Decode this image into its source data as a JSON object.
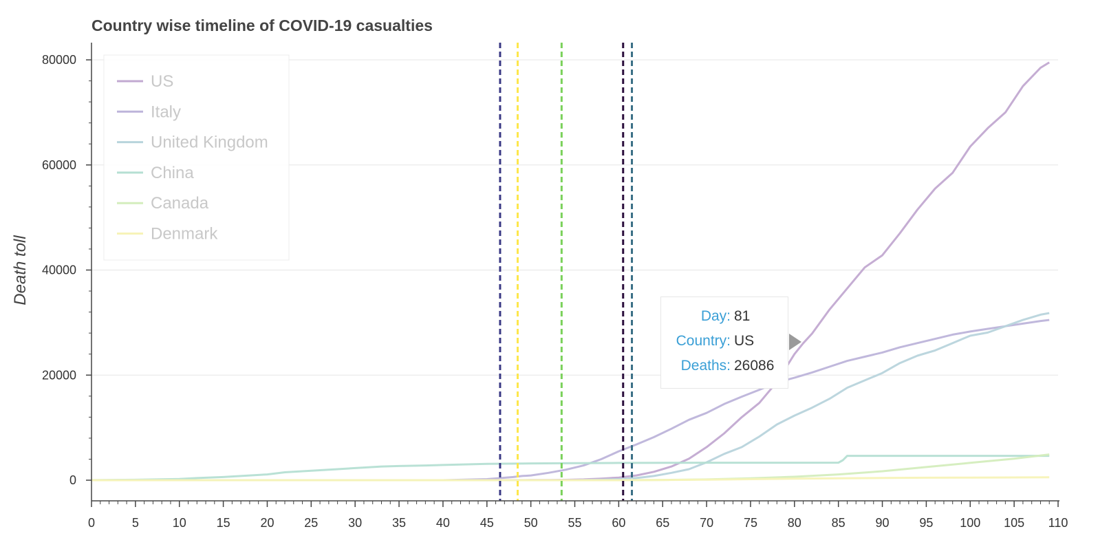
{
  "chart_data": {
    "type": "line",
    "title": "Country wise timeline of COVID-19 casualties",
    "xlabel": "",
    "ylabel": "Death toll",
    "xlim": [
      0,
      110
    ],
    "ylim": [
      0,
      80000
    ],
    "x_ticks": [
      0,
      5,
      10,
      15,
      20,
      25,
      30,
      35,
      40,
      45,
      50,
      55,
      60,
      65,
      70,
      75,
      80,
      85,
      90,
      95,
      100,
      105,
      110
    ],
    "y_ticks": [
      0,
      20000,
      40000,
      60000,
      80000
    ],
    "grid": "horizontal",
    "legend_position": "top-left",
    "series": [
      {
        "name": "US",
        "color": "#c2a9d1",
        "points": [
          [
            0,
            0
          ],
          [
            40,
            0
          ],
          [
            45,
            5
          ],
          [
            48,
            10
          ],
          [
            50,
            20
          ],
          [
            52,
            40
          ],
          [
            54,
            70
          ],
          [
            56,
            150
          ],
          [
            58,
            300
          ],
          [
            60,
            500
          ],
          [
            62,
            900
          ],
          [
            64,
            1600
          ],
          [
            66,
            2600
          ],
          [
            68,
            4100
          ],
          [
            70,
            6300
          ],
          [
            72,
            8900
          ],
          [
            74,
            12000
          ],
          [
            76,
            14700
          ],
          [
            78,
            18700
          ],
          [
            80,
            24000
          ],
          [
            81,
            26086
          ],
          [
            82,
            27900
          ],
          [
            84,
            32500
          ],
          [
            86,
            36500
          ],
          [
            88,
            40500
          ],
          [
            90,
            42800
          ],
          [
            92,
            47000
          ],
          [
            94,
            51500
          ],
          [
            96,
            55500
          ],
          [
            98,
            58500
          ],
          [
            100,
            63500
          ],
          [
            102,
            67000
          ],
          [
            104,
            70000
          ],
          [
            106,
            75000
          ],
          [
            108,
            78500
          ],
          [
            109,
            79500
          ]
        ]
      },
      {
        "name": "Italy",
        "color": "#bdb4da",
        "points": [
          [
            0,
            0
          ],
          [
            40,
            0
          ],
          [
            45,
            200
          ],
          [
            48,
            600
          ],
          [
            49,
            800
          ],
          [
            50,
            900
          ],
          [
            52,
            1400
          ],
          [
            54,
            2000
          ],
          [
            56,
            2800
          ],
          [
            58,
            4000
          ],
          [
            60,
            5500
          ],
          [
            62,
            6800
          ],
          [
            64,
            8200
          ],
          [
            66,
            9800
          ],
          [
            68,
            11500
          ],
          [
            70,
            12800
          ],
          [
            72,
            14500
          ],
          [
            74,
            15900
          ],
          [
            76,
            17200
          ],
          [
            78,
            18600
          ],
          [
            80,
            19500
          ],
          [
            82,
            20500
          ],
          [
            84,
            21600
          ],
          [
            86,
            22700
          ],
          [
            88,
            23500
          ],
          [
            90,
            24300
          ],
          [
            92,
            25300
          ],
          [
            94,
            26100
          ],
          [
            96,
            26900
          ],
          [
            98,
            27700
          ],
          [
            100,
            28300
          ],
          [
            102,
            28800
          ],
          [
            104,
            29300
          ],
          [
            106,
            29800
          ],
          [
            108,
            30300
          ],
          [
            109,
            30500
          ]
        ]
      },
      {
        "name": "United Kingdom",
        "color": "#b8d4dc",
        "points": [
          [
            0,
            0
          ],
          [
            55,
            0
          ],
          [
            58,
            100
          ],
          [
            60,
            200
          ],
          [
            62,
            400
          ],
          [
            64,
            800
          ],
          [
            66,
            1400
          ],
          [
            68,
            2100
          ],
          [
            70,
            3400
          ],
          [
            72,
            5000
          ],
          [
            74,
            6300
          ],
          [
            76,
            8300
          ],
          [
            78,
            10600
          ],
          [
            80,
            12300
          ],
          [
            82,
            13800
          ],
          [
            84,
            15500
          ],
          [
            86,
            17600
          ],
          [
            88,
            19000
          ],
          [
            90,
            20400
          ],
          [
            92,
            22300
          ],
          [
            94,
            23700
          ],
          [
            96,
            24700
          ],
          [
            98,
            26100
          ],
          [
            100,
            27500
          ],
          [
            102,
            28100
          ],
          [
            104,
            29300
          ],
          [
            106,
            30500
          ],
          [
            108,
            31500
          ],
          [
            109,
            31800
          ]
        ]
      },
      {
        "name": "China",
        "color": "#b5dfd3",
        "points": [
          [
            0,
            17
          ],
          [
            5,
            80
          ],
          [
            10,
            220
          ],
          [
            12,
            400
          ],
          [
            15,
            600
          ],
          [
            18,
            900
          ],
          [
            20,
            1100
          ],
          [
            22,
            1500
          ],
          [
            25,
            1800
          ],
          [
            28,
            2100
          ],
          [
            30,
            2300
          ],
          [
            33,
            2600
          ],
          [
            35,
            2700
          ],
          [
            38,
            2800
          ],
          [
            40,
            2900
          ],
          [
            45,
            3100
          ],
          [
            50,
            3200
          ],
          [
            55,
            3250
          ],
          [
            60,
            3280
          ],
          [
            65,
            3300
          ],
          [
            70,
            3320
          ],
          [
            80,
            3330
          ],
          [
            85,
            3340
          ],
          [
            85.5,
            3800
          ],
          [
            86,
            4630
          ],
          [
            90,
            4632
          ],
          [
            95,
            4633
          ],
          [
            100,
            4633
          ],
          [
            109,
            4634
          ]
        ]
      },
      {
        "name": "Canada",
        "color": "#d4edbd",
        "points": [
          [
            0,
            0
          ],
          [
            60,
            0
          ],
          [
            65,
            50
          ],
          [
            70,
            150
          ],
          [
            75,
            350
          ],
          [
            80,
            650
          ],
          [
            85,
            1100
          ],
          [
            90,
            1700
          ],
          [
            95,
            2500
          ],
          [
            100,
            3300
          ],
          [
            105,
            4100
          ],
          [
            109,
            4900
          ]
        ]
      },
      {
        "name": "Denmark",
        "color": "#f7f3b8",
        "points": [
          [
            0,
            0
          ],
          [
            60,
            0
          ],
          [
            65,
            20
          ],
          [
            70,
            100
          ],
          [
            75,
            200
          ],
          [
            80,
            300
          ],
          [
            85,
            370
          ],
          [
            90,
            420
          ],
          [
            95,
            470
          ],
          [
            100,
            500
          ],
          [
            105,
            530
          ],
          [
            109,
            550
          ]
        ]
      }
    ],
    "vlines": [
      {
        "x": 46.5,
        "color": "#3b3a85"
      },
      {
        "x": 48.5,
        "color": "#fde74c"
      },
      {
        "x": 53.5,
        "color": "#7ad15a"
      },
      {
        "x": 60.5,
        "color": "#2b0f3d"
      },
      {
        "x": 61.5,
        "color": "#3a6f86"
      }
    ]
  },
  "tooltip": {
    "day_label": "Day:",
    "day_value": "81",
    "country_label": "Country:",
    "country_value": "US",
    "deaths_label": "Deaths:",
    "deaths_value": "26086"
  }
}
